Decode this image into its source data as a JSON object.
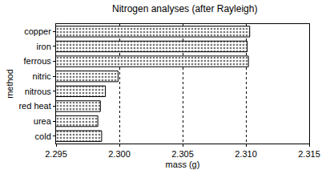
{
  "chart_data": {
    "type": "bar",
    "orientation": "horizontal",
    "title": "Nitrogen analyses (after Rayleigh)",
    "x_label": "mass (g)",
    "y_label": "method",
    "categories": [
      "copper",
      "iron",
      "ferrous",
      "nitric",
      "nitrous",
      "red heat",
      "urea",
      "cold"
    ],
    "values": [
      2.3103,
      2.3101,
      2.3102,
      2.2999,
      2.2989,
      2.2985,
      2.2983,
      2.2986
    ],
    "color": "#777777",
    "xlim": [
      2.295,
      2.315
    ],
    "xticks": [
      2.295,
      {
        "value": 2.3,
        "label": "2.300"
      },
      2.305,
      {
        "value": 2.31,
        "label": "2.310"
      },
      2.315
    ],
    "grid": true
  }
}
